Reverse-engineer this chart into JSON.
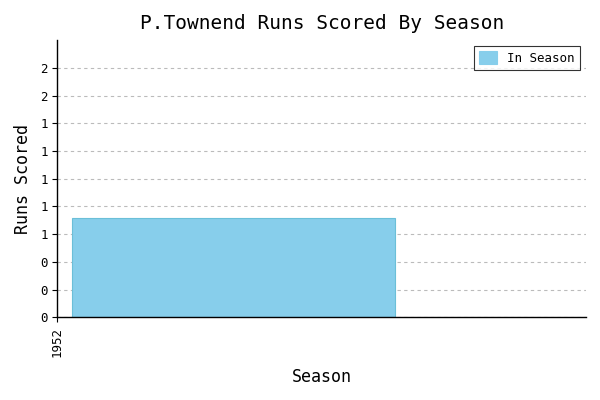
{
  "title": "P.Townend Runs Scored By Season",
  "xlabel": "Season",
  "ylabel": "Runs Scored",
  "seasons": [
    1952
  ],
  "values": [
    1
  ],
  "bar_color": "#87CEEB",
  "bar_edgecolor": "#6BBFD8",
  "legend_label": "In Season",
  "background_color": "#ffffff",
  "grid_color": "#bbbbbb",
  "title_fontsize": 14,
  "axis_fontsize": 12,
  "tick_fontsize": 9,
  "ytick_positions": [
    0.0,
    0.278,
    0.556,
    0.833,
    1.111,
    1.389,
    1.667,
    1.944,
    2.222,
    2.5
  ],
  "ytick_labels": [
    "0",
    "0",
    "0",
    "1",
    "1",
    "1",
    "1",
    "1",
    "2",
    "2"
  ],
  "ylim_top": 2.78,
  "xlim_left": 1952,
  "xlim_right": 1952.9
}
